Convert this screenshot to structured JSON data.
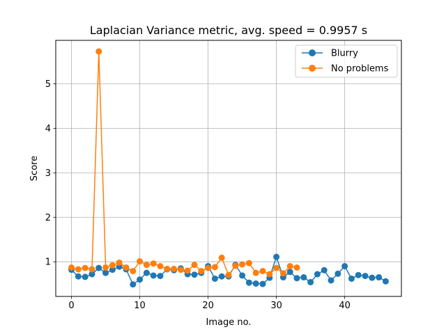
{
  "chart_data": {
    "type": "line",
    "title": "Laplacian Variance metric, avg. speed = 0.9957 s",
    "xlabel": "Image no.",
    "ylabel": "Score",
    "xlim": [
      -2.3,
      48.3
    ],
    "ylim": [
      0.22,
      5.98
    ],
    "xticks": [
      0,
      10,
      20,
      30,
      40
    ],
    "yticks": [
      1,
      2,
      3,
      4,
      5
    ],
    "grid": true,
    "legend_position": "upper right",
    "series": [
      {
        "name": "Blurry",
        "color": "#1f77b4",
        "x": [
          0,
          1,
          2,
          3,
          4,
          5,
          6,
          7,
          8,
          9,
          10,
          11,
          12,
          13,
          14,
          15,
          16,
          17,
          18,
          19,
          20,
          21,
          22,
          23,
          24,
          25,
          26,
          27,
          28,
          29,
          30,
          31,
          32,
          33,
          34,
          35,
          36,
          37,
          38,
          39,
          40,
          41,
          42,
          43,
          44,
          45,
          46
        ],
        "y": [
          0.82,
          0.67,
          0.66,
          0.72,
          0.86,
          0.75,
          0.82,
          0.89,
          0.83,
          0.49,
          0.6,
          0.75,
          0.69,
          0.68,
          0.83,
          0.81,
          0.85,
          0.72,
          0.71,
          0.75,
          0.9,
          0.62,
          0.67,
          0.67,
          0.93,
          0.69,
          0.53,
          0.51,
          0.5,
          0.64,
          1.11,
          0.65,
          0.77,
          0.63,
          0.65,
          0.54,
          0.72,
          0.81,
          0.58,
          0.73,
          0.9,
          0.62,
          0.7,
          0.68,
          0.64,
          0.65,
          0.56
        ]
      },
      {
        "name": "No problems",
        "color": "#ff7f0e",
        "x": [
          0,
          1,
          2,
          3,
          4,
          5,
          6,
          7,
          8,
          9,
          10,
          11,
          12,
          13,
          14,
          15,
          16,
          17,
          18,
          19,
          20,
          21,
          22,
          23,
          24,
          25,
          26,
          27,
          28,
          29,
          30,
          31,
          32,
          33
        ],
        "y": [
          0.87,
          0.83,
          0.86,
          0.83,
          5.73,
          0.87,
          0.92,
          0.98,
          0.87,
          0.79,
          1.01,
          0.93,
          0.96,
          0.9,
          0.84,
          0.84,
          0.82,
          0.8,
          0.93,
          0.79,
          0.86,
          0.88,
          1.09,
          0.7,
          0.91,
          0.94,
          0.97,
          0.75,
          0.79,
          0.72,
          0.86,
          0.74,
          0.9,
          0.87
        ]
      }
    ]
  }
}
